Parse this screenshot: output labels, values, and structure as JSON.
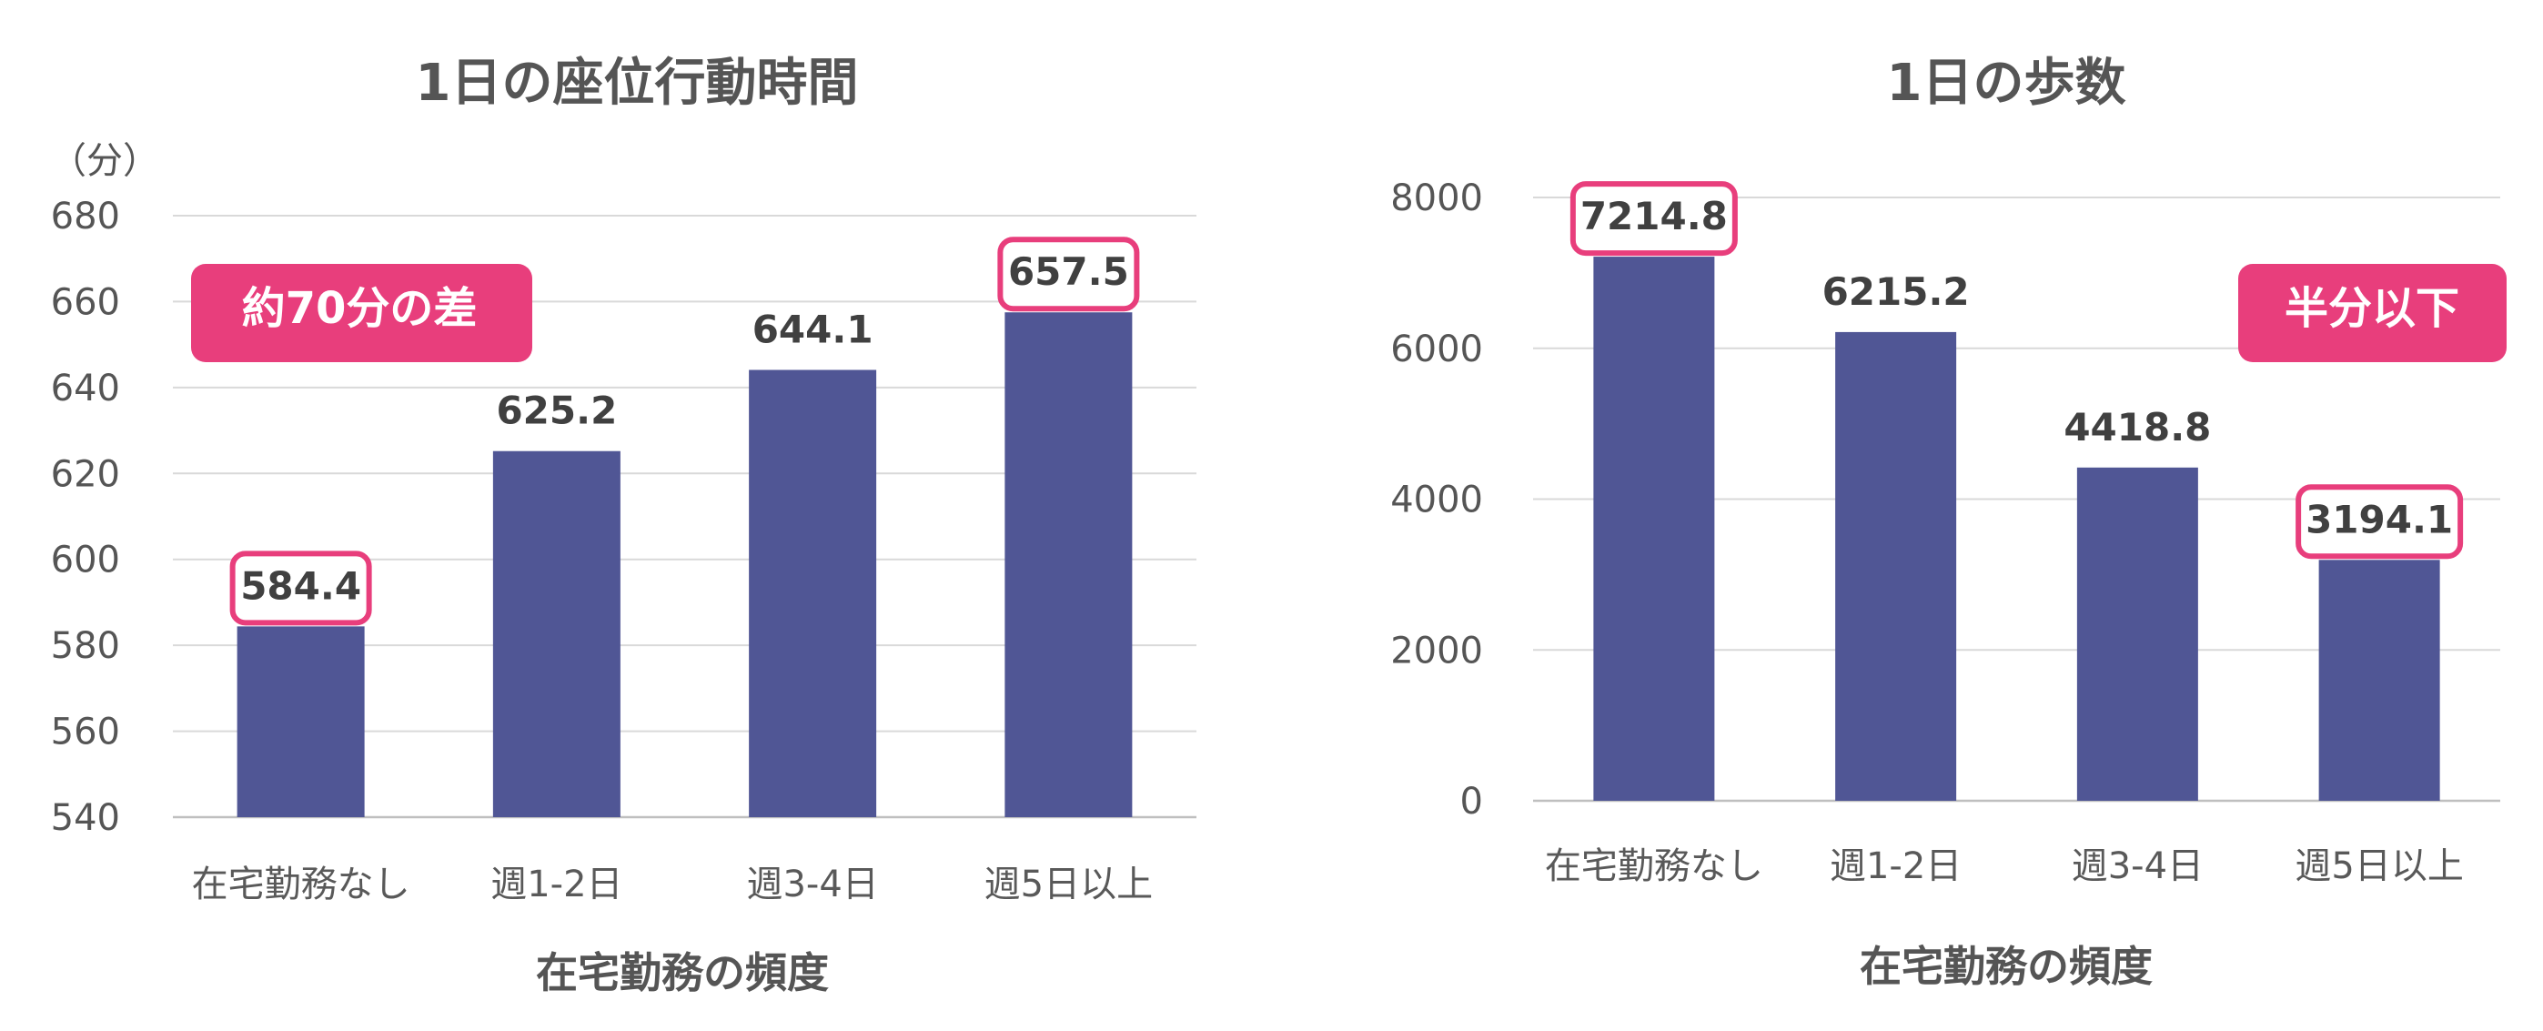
{
  "colors": {
    "bar": "#505695",
    "accent": "#e83e7c",
    "text": "#555555",
    "grid": "#d9d9d9"
  },
  "chart_data": [
    {
      "type": "bar",
      "title": "1日の座位行動時間",
      "ylabel": "（分）",
      "xlabel": "在宅勤務の頻度",
      "categories": [
        "在宅勤務なし",
        "週1-2日",
        "週3-4日",
        "週5日以上"
      ],
      "values": [
        584.4,
        625.2,
        644.1,
        657.5
      ],
      "value_labels": [
        "584.4",
        "625.2",
        "644.1",
        "657.5"
      ],
      "highlighted": [
        true,
        false,
        false,
        true
      ],
      "ylim": [
        540,
        680
      ],
      "yticks": [
        540,
        560,
        580,
        600,
        620,
        640,
        660,
        680
      ],
      "ytick_labels": [
        "540",
        "560",
        "580",
        "600",
        "620",
        "640",
        "660",
        "680"
      ],
      "grid": true,
      "annotation": "約70分の差"
    },
    {
      "type": "bar",
      "title": "1日の歩数",
      "ylabel": "",
      "xlabel": "在宅勤務の頻度",
      "categories": [
        "在宅勤務なし",
        "週1-2日",
        "週3-4日",
        "週5日以上"
      ],
      "values": [
        7214.8,
        6215.2,
        4418.8,
        3194.1
      ],
      "value_labels": [
        "7214.8",
        "6215.2",
        "4418.8",
        "3194.1"
      ],
      "highlighted": [
        true,
        false,
        false,
        true
      ],
      "ylim": [
        0,
        8000
      ],
      "yticks": [
        0,
        2000,
        4000,
        6000,
        8000
      ],
      "ytick_labels": [
        "0",
        "2000",
        "4000",
        "6000",
        "8000"
      ],
      "grid": true,
      "annotation": "半分以下"
    }
  ]
}
